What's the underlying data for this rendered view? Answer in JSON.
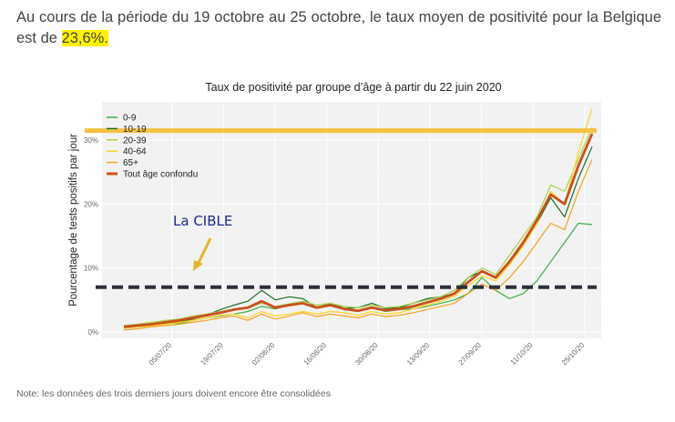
{
  "intro": {
    "text_before": "Au cours de la période du 19 octobre au 25 octobre, le taux moyen de positivité pour la Belgique est de",
    "highlight": "23,6%."
  },
  "note": "Note: les données des trois derniers jours doivent encore être consolidées",
  "colors": {
    "highlight": "#fff200",
    "target_line": "#2b2f3a",
    "ref_line": "#f5c242",
    "annotation_text": "#1e2a8a",
    "arrow": "#e2b62c"
  },
  "chart_data": {
    "type": "line",
    "title": "Taux de positivité par groupe d’âge à partir du 22 juin 2020",
    "ylabel": "Pourcentage de tests positifs par jour",
    "xlabel": "",
    "x_start": "22/06/20",
    "x_end": "27/10/20",
    "x_ticks": [
      "05/07/20",
      "19/07/20",
      "02/08/20",
      "16/08/20",
      "30/08/20",
      "13/09/20",
      "27/09/20",
      "11/10/20",
      "25/10/20"
    ],
    "y_ticks": [
      "0%",
      "10%",
      "20%",
      "30%"
    ],
    "ylim": [
      -1,
      36
    ],
    "grid": true,
    "legend_position": "top-left",
    "series": [
      {
        "name": "0-9",
        "color": "#3cb043",
        "width": 1.2,
        "values": [
          1,
          0.8,
          1.2,
          1.5,
          1.3,
          1.8,
          2.2,
          2.5,
          2.8,
          3.2,
          4,
          3.6,
          4.2,
          4.5,
          3.8,
          4.2,
          3.5,
          3.2,
          3.8,
          3.2,
          3.5,
          3.6,
          4,
          4.5,
          5,
          6,
          8.5,
          6.5,
          5.2,
          6,
          8,
          11,
          14,
          17,
          16.8
        ]
      },
      {
        "name": "10-19",
        "color": "#1f6e2a",
        "width": 1.2,
        "values": [
          0.6,
          0.8,
          1,
          1.3,
          1.6,
          2,
          2.6,
          3.5,
          4.2,
          4.8,
          6.5,
          5,
          5.5,
          5.2,
          3.8,
          4.5,
          3.7,
          3.8,
          4.5,
          3.7,
          3.8,
          4.5,
          5.2,
          5.5,
          6,
          8.5,
          9.5,
          8.5,
          11,
          13.5,
          17,
          21,
          18,
          24,
          29
        ]
      },
      {
        "name": "20-39",
        "color": "#a8d44a",
        "width": 1.2,
        "values": [
          1,
          1.2,
          1.5,
          1.8,
          2,
          2.5,
          2.8,
          3.2,
          3.5,
          3.8,
          4.5,
          4,
          4.4,
          4.8,
          4.2,
          4.5,
          4,
          3.8,
          4.2,
          3.8,
          4,
          4.5,
          5,
          5.5,
          6.5,
          8.5,
          10,
          9,
          12,
          15,
          18,
          23,
          22,
          27,
          32
        ]
      },
      {
        "name": "40-64",
        "color": "#ffd51c",
        "width": 1.2,
        "values": [
          0.6,
          0.8,
          1,
          1.2,
          1.5,
          1.8,
          2.2,
          2.6,
          2.8,
          2.2,
          3.2,
          2.5,
          2.8,
          3.2,
          2.8,
          3.2,
          3,
          2.6,
          3.2,
          2.8,
          3,
          3.6,
          4.2,
          4.8,
          5.6,
          7.2,
          8.8,
          8,
          10.5,
          13.5,
          17,
          22,
          20,
          28,
          35
        ]
      },
      {
        "name": "65+",
        "color": "#f4a11c",
        "width": 1.2,
        "values": [
          0.3,
          0.5,
          0.8,
          1,
          1.2,
          1.5,
          1.8,
          2.2,
          2.5,
          1.8,
          2.8,
          2,
          2.5,
          3,
          2.4,
          2.8,
          2.5,
          2.2,
          2.8,
          2.4,
          2.6,
          3,
          3.5,
          4,
          4.5,
          6,
          7.5,
          6.5,
          8.5,
          11,
          14,
          17,
          16,
          22,
          27
        ]
      },
      {
        "name": "Tout âge confondu",
        "color": "#c9501c",
        "width": 2.8,
        "values": [
          0.8,
          1,
          1.2,
          1.5,
          1.8,
          2.2,
          2.6,
          3,
          3.5,
          3.8,
          4.8,
          3.8,
          4.2,
          4.5,
          3.8,
          4.2,
          3.6,
          3.3,
          3.8,
          3.4,
          3.6,
          4,
          4.6,
          5.2,
          6,
          7.8,
          9.5,
          8.5,
          11,
          14,
          17.5,
          21.5,
          20,
          26,
          31
        ]
      }
    ],
    "reference_line": {
      "value": 31.5
    },
    "target_line": {
      "value": 7
    },
    "annotation": {
      "text": "La CIBLE"
    }
  }
}
